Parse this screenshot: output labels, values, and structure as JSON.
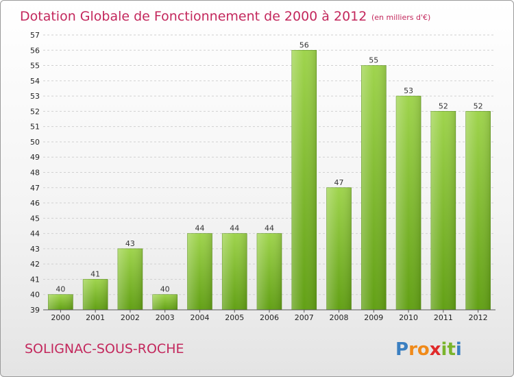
{
  "chart_data": {
    "type": "bar",
    "title": "Dotation Globale de Fonctionnement de 2000 à 2012",
    "subtitle": "(en milliers d'€)",
    "categories": [
      "2000",
      "2001",
      "2002",
      "2003",
      "2004",
      "2005",
      "2006",
      "2007",
      "2008",
      "2009",
      "2010",
      "2011",
      "2012"
    ],
    "values": [
      40,
      41,
      43,
      40,
      44,
      44,
      44,
      56,
      47,
      55,
      53,
      52,
      52
    ],
    "ylim": [
      39,
      57
    ],
    "yticks": [
      "39",
      "40",
      "41",
      "42",
      "43",
      "44",
      "45",
      "46",
      "47",
      "48",
      "49",
      "50",
      "51",
      "52",
      "53",
      "54",
      "55",
      "56",
      "57"
    ],
    "grid": true,
    "bar_color": "#7ab42c"
  },
  "footer": {
    "place": "SOLIGNAC-SOUS-ROCHE",
    "logo_letters": [
      "P",
      "r",
      "o",
      "x",
      "i",
      "t",
      "i"
    ],
    "logo_colors": [
      "#3a7fc1",
      "#f08a1a",
      "#f08a1a",
      "#e02a2a",
      "#7ab42c",
      "#7ab42c",
      "#3a7fc1"
    ]
  }
}
